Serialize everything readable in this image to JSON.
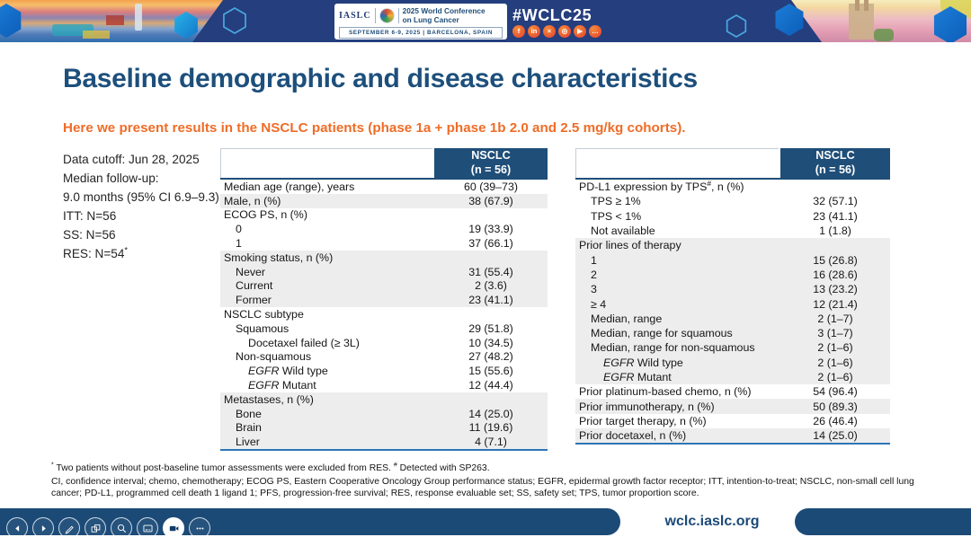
{
  "header": {
    "logo_text": "IASLC",
    "conference_name_line1": "2025 World Conference",
    "conference_name_line2": "on Lung Cancer",
    "date_location": "SEPTEMBER 6-9, 2025  |  BARCELONA, SPAIN",
    "hashtag": "#WCLC25",
    "social_icons": [
      "facebook",
      "linkedin",
      "x",
      "instagram",
      "youtube",
      "chat"
    ]
  },
  "slide": {
    "title": "Baseline demographic and disease characteristics",
    "subtitle": "Here we present results in the NSCLC patients (phase 1a + phase 1b 2.0 and 2.5 mg/kg cohorts).",
    "info_lines": [
      {
        "text": "Data cutoff: Jun 28, 2025"
      },
      {
        "text": "Median follow-up:"
      },
      {
        "text": "9.0 months (95% CI 6.9–9.3)"
      },
      {
        "text": "ITT: N=56"
      },
      {
        "text": "SS: N=56"
      },
      {
        "text": "RES: N=54",
        "sup": "*"
      }
    ]
  },
  "tables": {
    "left": {
      "col_header_line1": "NSCLC",
      "col_header_line2": "(n = 56)",
      "rows": [
        {
          "label": "Median age (range), years",
          "value": "60 (39–73)",
          "indent": 0
        },
        {
          "label": "Male, n (%)",
          "value": "38 (67.9)",
          "indent": 0,
          "shaded": true
        },
        {
          "label": "ECOG PS, n (%)",
          "value": "",
          "indent": 0
        },
        {
          "label": "0",
          "value": "19 (33.9)",
          "indent": 1
        },
        {
          "label": "1",
          "value": "37 (66.1)",
          "indent": 1
        },
        {
          "label": "Smoking status, n (%)",
          "value": "",
          "indent": 0,
          "shaded": true
        },
        {
          "label": "Never",
          "value": "31 (55.4)",
          "indent": 1,
          "shaded": true
        },
        {
          "label": "Current",
          "value": "2 (3.6)",
          "indent": 1,
          "shaded": true
        },
        {
          "label": "Former",
          "value": "23 (41.1)",
          "indent": 1,
          "shaded": true
        },
        {
          "label": "NSCLC subtype",
          "value": "",
          "indent": 0
        },
        {
          "label": "Squamous",
          "value": "29 (51.8)",
          "indent": 1
        },
        {
          "label": "Docetaxel failed (≥ 3L)",
          "value": "10 (34.5)",
          "indent": 2
        },
        {
          "label": "Non-squamous",
          "value": "27 (48.2)",
          "indent": 1
        },
        {
          "italic": "EGFR",
          "label": " Wild type",
          "value": "15 (55.6)",
          "indent": 2
        },
        {
          "italic": "EGFR",
          "label": " Mutant",
          "value": "12 (44.4)",
          "indent": 2
        },
        {
          "label": "Metastases, n (%)",
          "value": "",
          "indent": 0,
          "shaded": true
        },
        {
          "label": "Bone",
          "value": "14 (25.0)",
          "indent": 1,
          "shaded": true
        },
        {
          "label": "Brain",
          "value": "11 (19.6)",
          "indent": 1,
          "shaded": true
        },
        {
          "label": "Liver",
          "value": "4 (7.1)",
          "indent": 1,
          "shaded": true
        }
      ]
    },
    "right": {
      "col_header_line1": "NSCLC",
      "col_header_line2": "(n = 56)",
      "rows": [
        {
          "label": "PD-L1 expression by TPS",
          "sup": "#",
          "label2": ", n (%)",
          "value": "",
          "indent": 0
        },
        {
          "label": "TPS ≥ 1%",
          "value": "32 (57.1)",
          "indent": 1
        },
        {
          "label": "TPS < 1%",
          "value": "23 (41.1)",
          "indent": 1
        },
        {
          "label": "Not available",
          "value": "1 (1.8)",
          "indent": 1
        },
        {
          "label": "Prior lines of therapy",
          "value": "",
          "indent": 0,
          "shaded": true
        },
        {
          "label": "1",
          "value": "15 (26.8)",
          "indent": 1,
          "shaded": true
        },
        {
          "label": "2",
          "value": "16 (28.6)",
          "indent": 1,
          "shaded": true
        },
        {
          "label": "3",
          "value": "13 (23.2)",
          "indent": 1,
          "shaded": true
        },
        {
          "label": "≥ 4",
          "value": "12 (21.4)",
          "indent": 1,
          "shaded": true
        },
        {
          "label": "Median, range",
          "value": "2 (1–7)",
          "indent": 1,
          "shaded": true
        },
        {
          "label": "Median, range for squamous",
          "value": "3 (1–7)",
          "indent": 1,
          "shaded": true
        },
        {
          "label": "Median, range for non-squamous",
          "value": "2 (1–6)",
          "indent": 1,
          "shaded": true
        },
        {
          "italic": "EGFR",
          "label": " Wild type",
          "value": "2 (1–6)",
          "indent": 2,
          "shaded": true
        },
        {
          "italic": "EGFR",
          "label": " Mutant",
          "value": "2 (1–6)",
          "indent": 2,
          "shaded": true
        },
        {
          "label": "Prior platinum-based chemo, n (%)",
          "value": "54 (96.4)",
          "indent": 0
        },
        {
          "label": "Prior immunotherapy, n (%)",
          "value": "50 (89.3)",
          "indent": 0,
          "shaded": true
        },
        {
          "label": "Prior target therapy, n (%)",
          "value": "26 (46.4)",
          "indent": 0
        },
        {
          "label": "Prior docetaxel, n (%)",
          "value": "14 (25.0)",
          "indent": 0,
          "shaded": true
        }
      ]
    }
  },
  "footnotes": {
    "markers": [
      {
        "marker": "*",
        "text": "Two patients without post-baseline tumor assessments were excluded from RES."
      },
      {
        "marker": "#",
        "text": "Detected with SP263."
      }
    ],
    "abbreviations": "CI, confidence interval; chemo, chemotherapy; ECOG PS, Eastern Cooperative Oncology Group performance status; EGFR, epidermal growth factor receptor; ITT, intention-to-treat; NSCLC, non-small cell lung cancer; PD-L1, programmed cell death 1 ligand 1; PFS, progression-free survival; RES, response evaluable set; SS, safety set; TPS, tumor proportion score."
  },
  "footer": {
    "url": "wclc.iaslc.org"
  },
  "toolbar": {
    "buttons": [
      {
        "name": "previous-slide",
        "icon": "arrow-left"
      },
      {
        "name": "next-slide",
        "icon": "arrow-right"
      },
      {
        "name": "pen",
        "icon": "pen"
      },
      {
        "name": "see-all-slides",
        "icon": "slides"
      },
      {
        "name": "zoom",
        "icon": "magnifier"
      },
      {
        "name": "captions",
        "icon": "captions"
      },
      {
        "name": "camera",
        "icon": "camera",
        "active": true
      },
      {
        "name": "more-options",
        "icon": "ellipsis"
      }
    ]
  },
  "colors": {
    "band_blue": "#253e7e",
    "navy": "#1f4e79",
    "accent_orange": "#ef6c27",
    "row_shade": "#ededee",
    "footer_blue": "#1b4a77",
    "table_bottom_border": "#2e75b6"
  }
}
